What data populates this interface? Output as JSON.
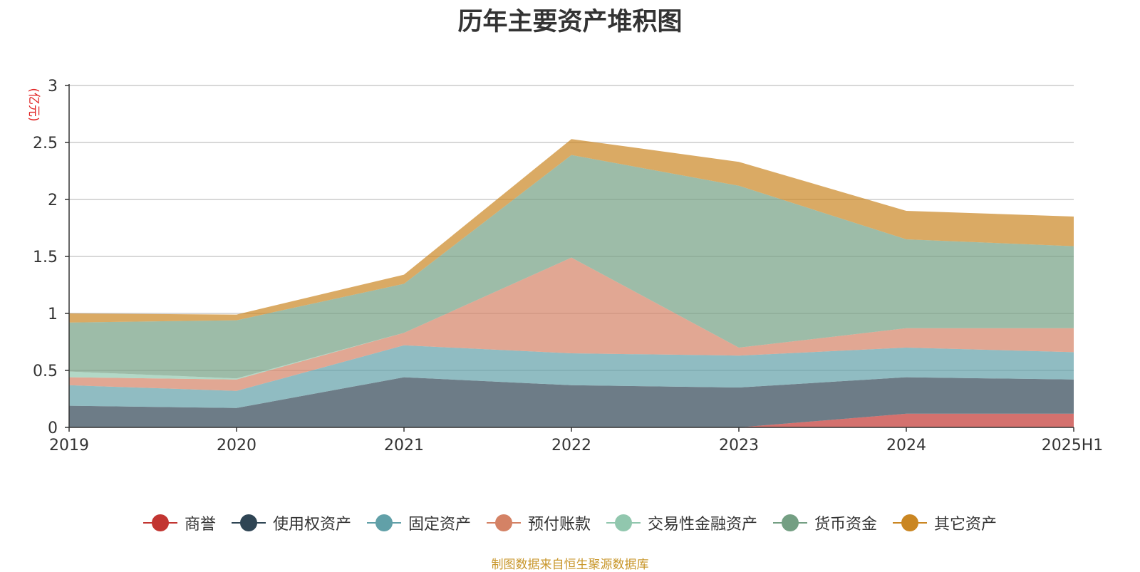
{
  "chart_data": {
    "type": "area",
    "stacked": true,
    "title": "历年主要资产堆积图",
    "ylabel": "(亿元)",
    "xlabel": "",
    "categories": [
      "2019",
      "2020",
      "2021",
      "2022",
      "2023",
      "2024",
      "2025H1"
    ],
    "ylim": [
      0,
      3
    ],
    "yticks": [
      0,
      0.5,
      1,
      1.5,
      2,
      2.5,
      3
    ],
    "ytick_labels": [
      "0",
      "0.5",
      "1",
      "1.5",
      "2",
      "2.5",
      "3"
    ],
    "grid": true,
    "legend_position": "bottom",
    "series": [
      {
        "name": "商誉",
        "color": "#c23531",
        "values": [
          0,
          0,
          0,
          0,
          0,
          0.12,
          0.12
        ]
      },
      {
        "name": "使用权资产",
        "color": "#2f4554",
        "values": [
          0.19,
          0.17,
          0.44,
          0.37,
          0.35,
          0.32,
          0.3
        ]
      },
      {
        "name": "固定资产",
        "color": "#61a0a8",
        "values": [
          0.18,
          0.15,
          0.28,
          0.28,
          0.28,
          0.26,
          0.24
        ]
      },
      {
        "name": "预付账款",
        "color": "#d48265",
        "values": [
          0.07,
          0.1,
          0.11,
          0.84,
          0.07,
          0.17,
          0.21
        ]
      },
      {
        "name": "交易性金融资产",
        "color": "#91c7ae",
        "values": [
          0.05,
          0.01,
          0,
          0,
          0,
          0,
          0
        ]
      },
      {
        "name": "货币资金",
        "color": "#749f83",
        "values": [
          0.43,
          0.51,
          0.43,
          0.9,
          1.42,
          0.78,
          0.72
        ]
      },
      {
        "name": "其它资产",
        "color": "#ca8622",
        "values": [
          0.08,
          0.05,
          0.08,
          0.14,
          0.21,
          0.25,
          0.26
        ]
      }
    ]
  },
  "source_note": "制图数据来自恒生聚源数据库"
}
